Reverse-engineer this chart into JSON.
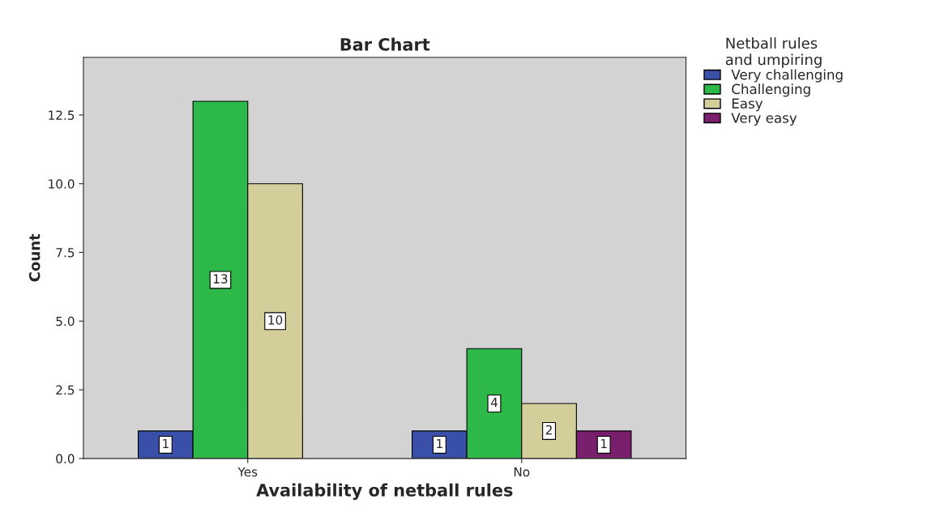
{
  "chart_data": {
    "type": "bar",
    "title": "Bar Chart",
    "xlabel": "Availability of netball rules",
    "ylabel": "Count",
    "legend_title": "Netball rules\nand umpiring",
    "categories": [
      "Yes",
      "No"
    ],
    "series": [
      {
        "name": "Very challenging",
        "color": "#3a50a8",
        "values": [
          1,
          1
        ]
      },
      {
        "name": "Challenging",
        "color": "#2db84a",
        "values": [
          13,
          4
        ]
      },
      {
        "name": "Easy",
        "color": "#d4cf9a",
        "values": [
          10,
          2
        ]
      },
      {
        "name": "Very easy",
        "color": "#7a1f6e",
        "values": [
          null,
          1
        ]
      }
    ],
    "ylim": [
      0,
      14.6
    ],
    "yticks": [
      {
        "value": 0,
        "label": "0.0"
      },
      2.5,
      {
        "value": 5,
        "label": "5.0"
      },
      7.5,
      {
        "value": 10,
        "label": "10.0"
      },
      12.5
    ],
    "data_labels": true,
    "grid": false,
    "legend": "right"
  }
}
